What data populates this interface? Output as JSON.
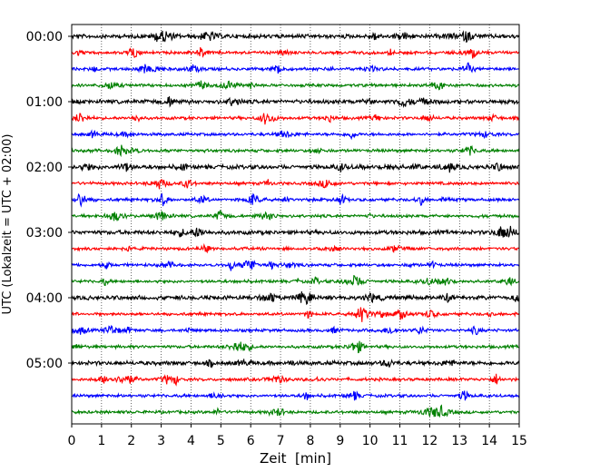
{
  "chart_data": {
    "type": "line",
    "title": "",
    "xlabel": "Zeit  [min]",
    "ylabel": "UTC (Lokalzeit = UTC + 02:00)",
    "xlim": [
      0,
      15
    ],
    "xticks": [
      0,
      1,
      2,
      3,
      4,
      5,
      6,
      7,
      8,
      9,
      10,
      11,
      12,
      13,
      14,
      15
    ],
    "grid": "vertical dotted lines at each minute",
    "rows_per_hour": 4,
    "row_minutes": 15,
    "ytick_labels": [
      "00:00",
      "01:00",
      "02:00",
      "03:00",
      "04:00",
      "05:00"
    ],
    "row_colors": [
      "#000000",
      "#ff0000",
      "#0000ff",
      "#008000"
    ],
    "rows": [
      {
        "start": "00:00",
        "color": "#000000"
      },
      {
        "start": "00:15",
        "color": "#ff0000"
      },
      {
        "start": "00:30",
        "color": "#0000ff"
      },
      {
        "start": "00:45",
        "color": "#008000"
      },
      {
        "start": "01:00",
        "color": "#000000"
      },
      {
        "start": "01:15",
        "color": "#ff0000"
      },
      {
        "start": "01:30",
        "color": "#0000ff"
      },
      {
        "start": "01:45",
        "color": "#008000"
      },
      {
        "start": "02:00",
        "color": "#000000"
      },
      {
        "start": "02:15",
        "color": "#ff0000"
      },
      {
        "start": "02:30",
        "color": "#0000ff"
      },
      {
        "start": "02:45",
        "color": "#008000"
      },
      {
        "start": "03:00",
        "color": "#000000"
      },
      {
        "start": "03:15",
        "color": "#ff0000"
      },
      {
        "start": "03:30",
        "color": "#0000ff"
      },
      {
        "start": "03:45",
        "color": "#008000"
      },
      {
        "start": "04:00",
        "color": "#000000"
      },
      {
        "start": "04:15",
        "color": "#ff0000"
      },
      {
        "start": "04:30",
        "color": "#0000ff"
      },
      {
        "start": "04:45",
        "color": "#008000"
      },
      {
        "start": "05:00",
        "color": "#000000"
      },
      {
        "start": "05:15",
        "color": "#ff0000"
      },
      {
        "start": "05:30",
        "color": "#0000ff"
      },
      {
        "start": "05:45",
        "color": "#008000"
      }
    ]
  }
}
